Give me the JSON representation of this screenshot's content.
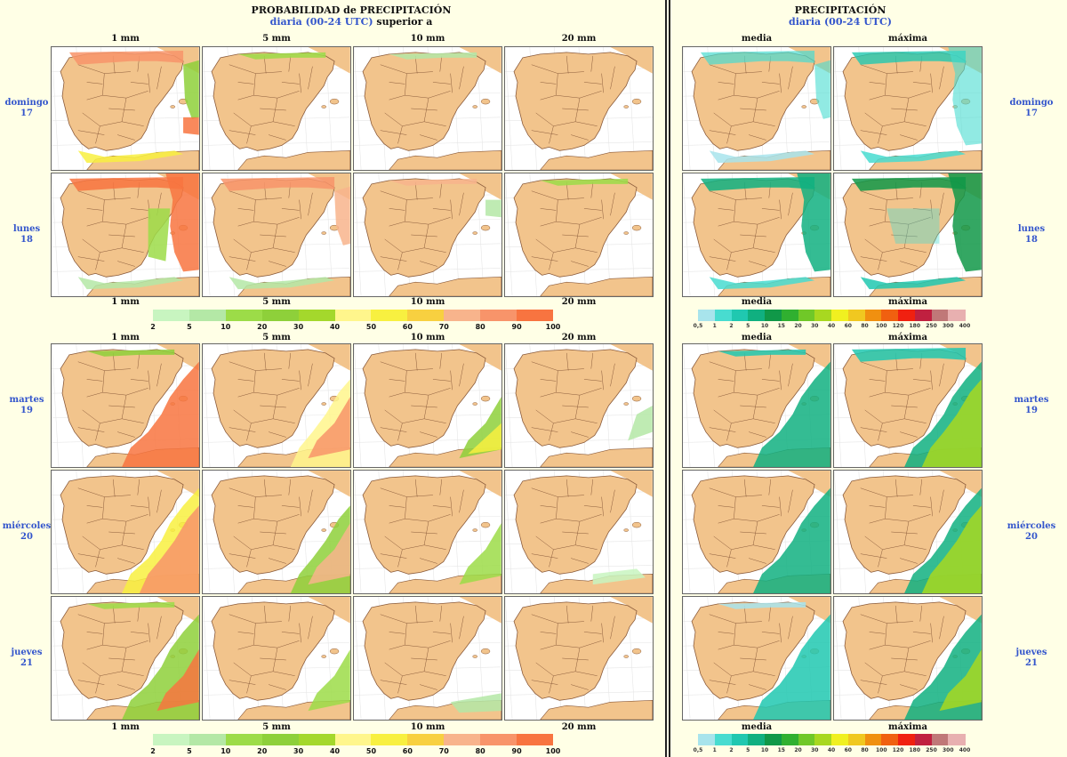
{
  "left_title": {
    "line1": "PROBABILIDAD de PRECIPITACIÓN",
    "line2": "diaria (00-24 UTC)",
    "line2_suffix": "superior a"
  },
  "right_title": {
    "line1": "PRECIPITACIÓN",
    "line2": "diaria (00-24 UTC)"
  },
  "thresholds": [
    "1 mm",
    "5 mm",
    "10 mm",
    "20 mm"
  ],
  "stats": [
    "media",
    "máxima"
  ],
  "days": [
    {
      "name": "domingo",
      "num": "17"
    },
    {
      "name": "lunes",
      "num": "18"
    },
    {
      "name": "martes",
      "num": "19"
    },
    {
      "name": "miércoles",
      "num": "20"
    },
    {
      "name": "jueves",
      "num": "21"
    }
  ],
  "prob_legend": {
    "ticks": [
      "2",
      "5",
      "10",
      "20",
      "30",
      "40",
      "50",
      "60",
      "70",
      "80",
      "90",
      "100"
    ],
    "colors": [
      "#c8f5c0",
      "#b4e8a6",
      "#9cdc48",
      "#8ed03a",
      "#a4d82c",
      "#fff68c",
      "#f8f040",
      "#f8d040",
      "#f8b48c",
      "#f8946a",
      "#f87440"
    ]
  },
  "precip_legend": {
    "ticks": [
      "0,5",
      "1",
      "2",
      "5",
      "10",
      "15",
      "20",
      "30",
      "40",
      "60",
      "80",
      "100",
      "120",
      "180",
      "250",
      "300",
      "400"
    ],
    "colors": [
      "#a8e4ec",
      "#48dcd0",
      "#20c8b0",
      "#10b080",
      "#109848",
      "#30b030",
      "#70c828",
      "#a8d820",
      "#f0f020",
      "#f0c820",
      "#f09010",
      "#f06010",
      "#f02010",
      "#c02040",
      "#c07878",
      "#e8b0b0"
    ]
  },
  "colors": {
    "land": "#f2c48c",
    "sea": "#ffffff",
    "border": "#8a5a3a",
    "frame": "#666666",
    "label_blue": "#3355cc"
  }
}
